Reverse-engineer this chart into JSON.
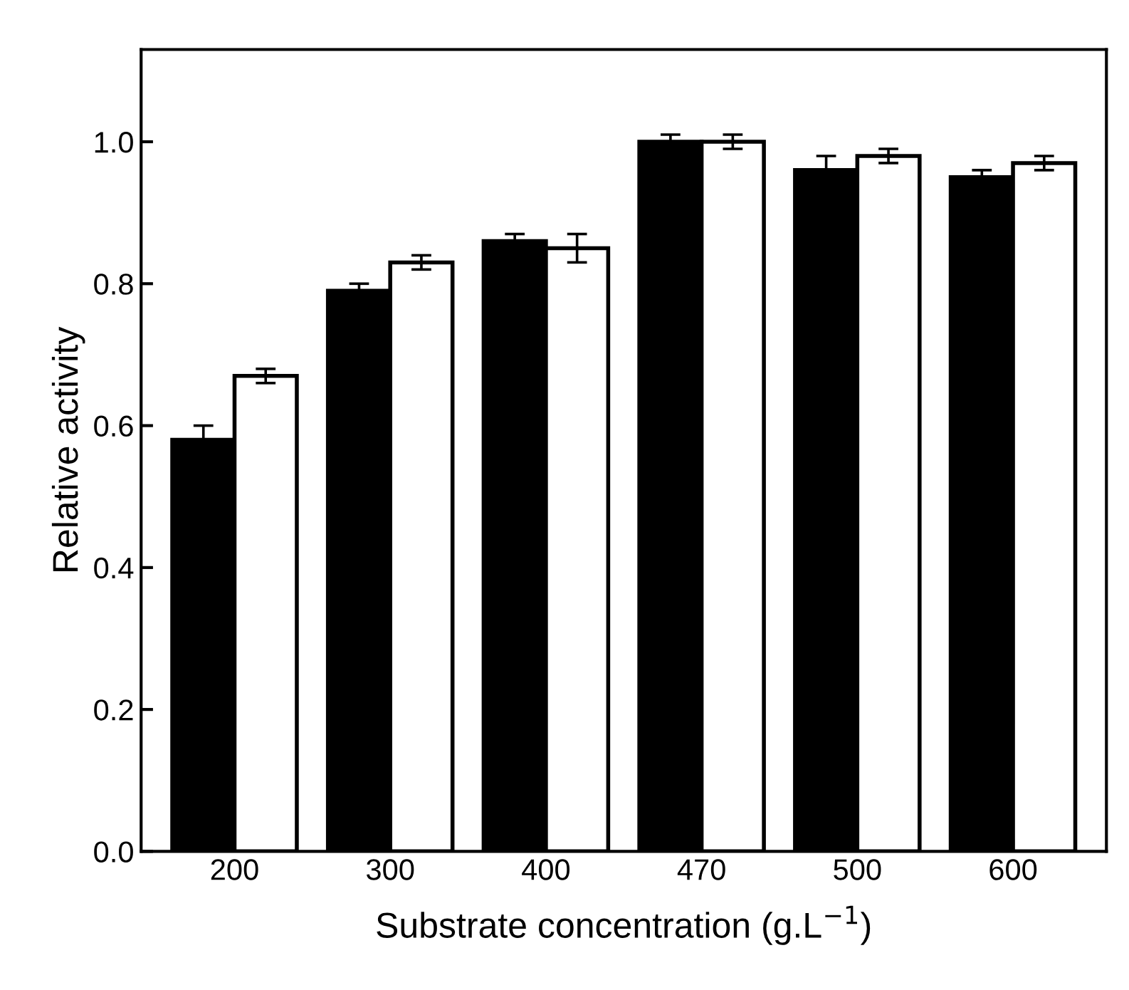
{
  "chart_data": {
    "type": "bar",
    "xlabel": "Substrate concentration (g.L$^{−1}$)",
    "ylabel": "Relative activity",
    "categories": [
      "200",
      "300",
      "400",
      "470",
      "500",
      "600"
    ],
    "series": [
      {
        "color": "#000000",
        "values": [
          0.58,
          0.79,
          0.86,
          1.0,
          0.96,
          0.95
        ],
        "errors": [
          0.02,
          0.01,
          0.01,
          0.01,
          0.02,
          0.01
        ]
      },
      {
        "color": "#ffffff",
        "values": [
          0.67,
          0.83,
          0.85,
          1.0,
          0.98,
          0.97
        ],
        "errors": [
          0.01,
          0.01,
          0.02,
          0.01,
          0.01,
          0.01
        ]
      }
    ],
    "ylim": [
      0,
      1.13
    ],
    "yticks": [
      {
        "value": 0,
        "label": "0.0"
      },
      {
        "value": 0.2,
        "label": "0.2"
      },
      {
        "value": 0.4,
        "label": "0.4"
      },
      {
        "value": 0.6,
        "label": "0.6"
      },
      {
        "value": 0.8,
        "label": "0.8"
      },
      {
        "value": 1.0,
        "label": "1.0"
      }
    ],
    "grid": false,
    "legend": false
  }
}
